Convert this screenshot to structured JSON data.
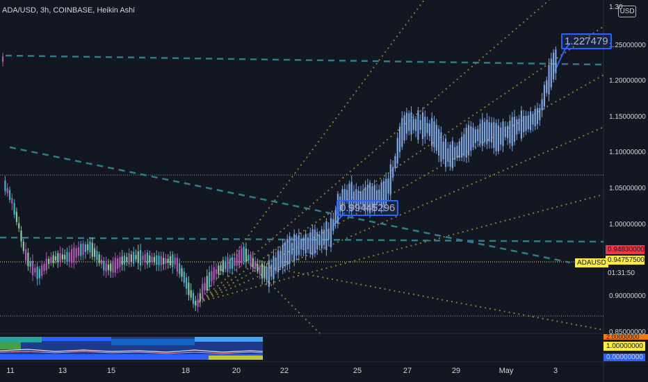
{
  "header": {
    "title": "ADA/USD, 3h, COINBASE, Heikin Ashi"
  },
  "currency_badge": "USD",
  "price_axis": {
    "top_partial": "1.30",
    "ticks": [
      "1.25000000",
      "1.20000000",
      "1.15000000",
      "1.10000000",
      "1.05000000",
      "1.00000000",
      "0.90000000",
      "0.85000000"
    ]
  },
  "time_axis": {
    "ticks": [
      "11",
      "13",
      "15",
      "18",
      "20",
      "22",
      "25",
      "27",
      "29",
      "May",
      "3"
    ]
  },
  "price_labels": {
    "red_level": "0.94830000",
    "current_price": "0.94757500",
    "symbol": "ADAUSD",
    "countdown": "01:31:50"
  },
  "annotations": {
    "callout_1": "0.99445296",
    "callout_2": "1.227479"
  },
  "indicator": {
    "top_partial": "2.00000000",
    "mid_value": "1.00000000",
    "low_value": "0.00000000"
  },
  "colors": {
    "background": "#131722",
    "candle": "#7ea6e0",
    "trendline": "#2e7d8c",
    "fib": "#8a7a2e",
    "accent": "#2962ff",
    "price_line": "#ffeb3b",
    "red_label": "#f23645"
  }
}
